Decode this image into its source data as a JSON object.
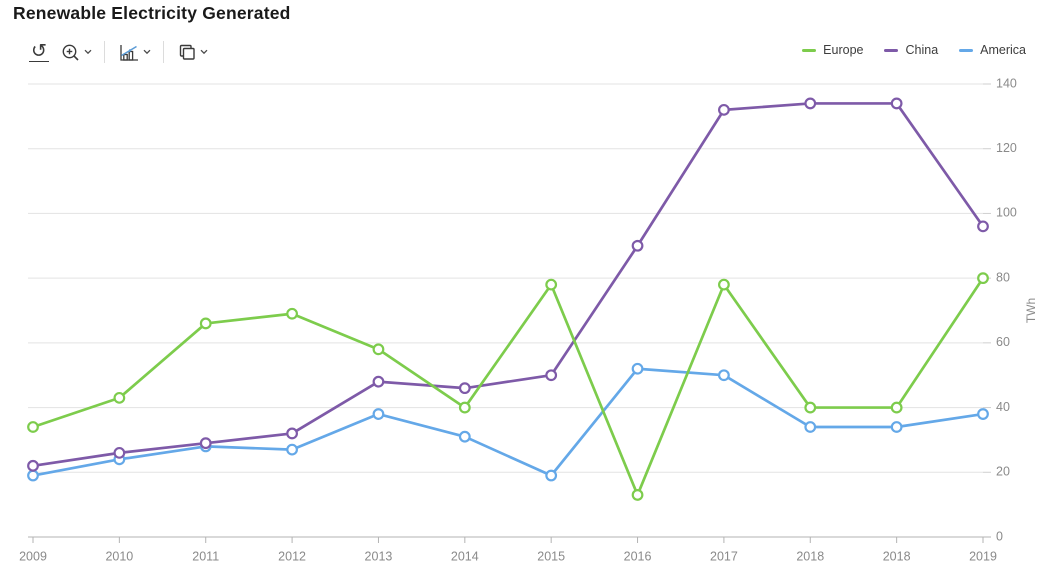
{
  "title": "Renewable Electricity Generated",
  "toolbar": {
    "icons": [
      {
        "name": "reset-icon",
        "has_dropdown": false
      },
      {
        "name": "zoom-in-icon",
        "has_dropdown": true
      },
      {
        "name": "chart-type-icon",
        "has_dropdown": true
      },
      {
        "name": "copy-icon",
        "has_dropdown": true
      }
    ]
  },
  "colors": {
    "europe": "#7dcc4c",
    "china": "#7e5aa8",
    "america": "#64a8e8",
    "grid": "#e3e3e3",
    "axis": "#b3b3b3",
    "tick_label": "#8a8a8a",
    "title": "#1a1a1a",
    "icon": "#3a3a3a",
    "icon_accent_blue": "#5b9bd5"
  },
  "chart_data": {
    "type": "line",
    "title": "Renewable Electricity Generated",
    "categories": [
      "2009",
      "2010",
      "2011",
      "2012",
      "2013",
      "2014",
      "2015",
      "2016",
      "2017",
      "2018",
      "2018",
      "2019"
    ],
    "series": [
      {
        "name": "Europe",
        "color": "#7dcc4c",
        "values": [
          34,
          43,
          66,
          69,
          58,
          40,
          78,
          13,
          78,
          40,
          40,
          80
        ]
      },
      {
        "name": "China",
        "color": "#7e5aa8",
        "values": [
          22,
          26,
          29,
          32,
          48,
          46,
          50,
          90,
          132,
          134,
          134,
          96
        ]
      },
      {
        "name": "America",
        "color": "#64a8e8",
        "values": [
          19,
          24,
          28,
          27,
          38,
          31,
          19,
          52,
          50,
          34,
          34,
          38
        ]
      }
    ],
    "xlabel": "",
    "ylabel": "TWh",
    "ylim": [
      0,
      140
    ],
    "ytick_step": 20,
    "yaxis_side": "right",
    "grid": true,
    "legend_position": "top-right",
    "marker": "hollow-circle"
  }
}
